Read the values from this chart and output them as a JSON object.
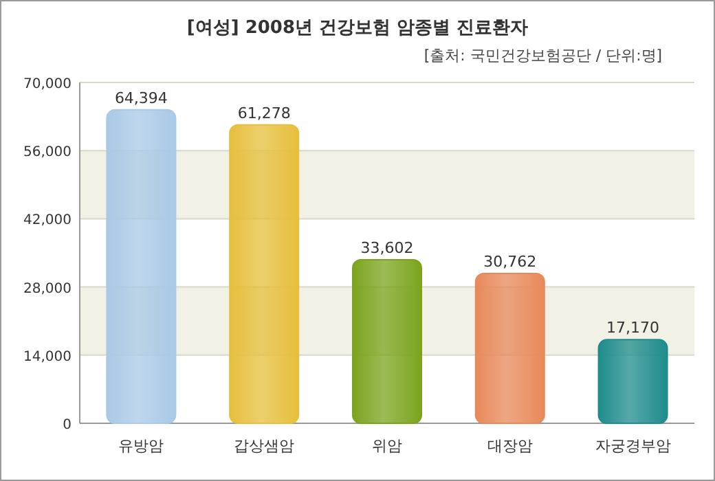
{
  "chart_data": {
    "type": "bar",
    "title": "[여성] 2008년 건강보험 암종별 진료환자",
    "subtitle": "[출처: 국민건강보험공단 / 단위:명]",
    "categories": [
      "유방암",
      "갑상샘암",
      "위암",
      "대장암",
      "자궁경부암"
    ],
    "values": [
      64394,
      61278,
      33602,
      30762,
      17170
    ],
    "colors": [
      "#a9c9e6",
      "#e6bf3c",
      "#7ba41e",
      "#e8895a",
      "#1f8c8c"
    ],
    "value_labels": [
      "64,394",
      "61,278",
      "33,602",
      "30,762",
      "17,170"
    ],
    "ylim": [
      0,
      70000
    ],
    "yticks": [
      0,
      {
        "value": 14000,
        "label": "14,000"
      },
      {
        "value": 28000,
        "label": "28,000"
      },
      {
        "value": 42000,
        "label": "42,000"
      },
      {
        "value": 56000,
        "label": "56,000"
      },
      {
        "value": 70000,
        "label": "70,000"
      }
    ],
    "grid": "y"
  }
}
